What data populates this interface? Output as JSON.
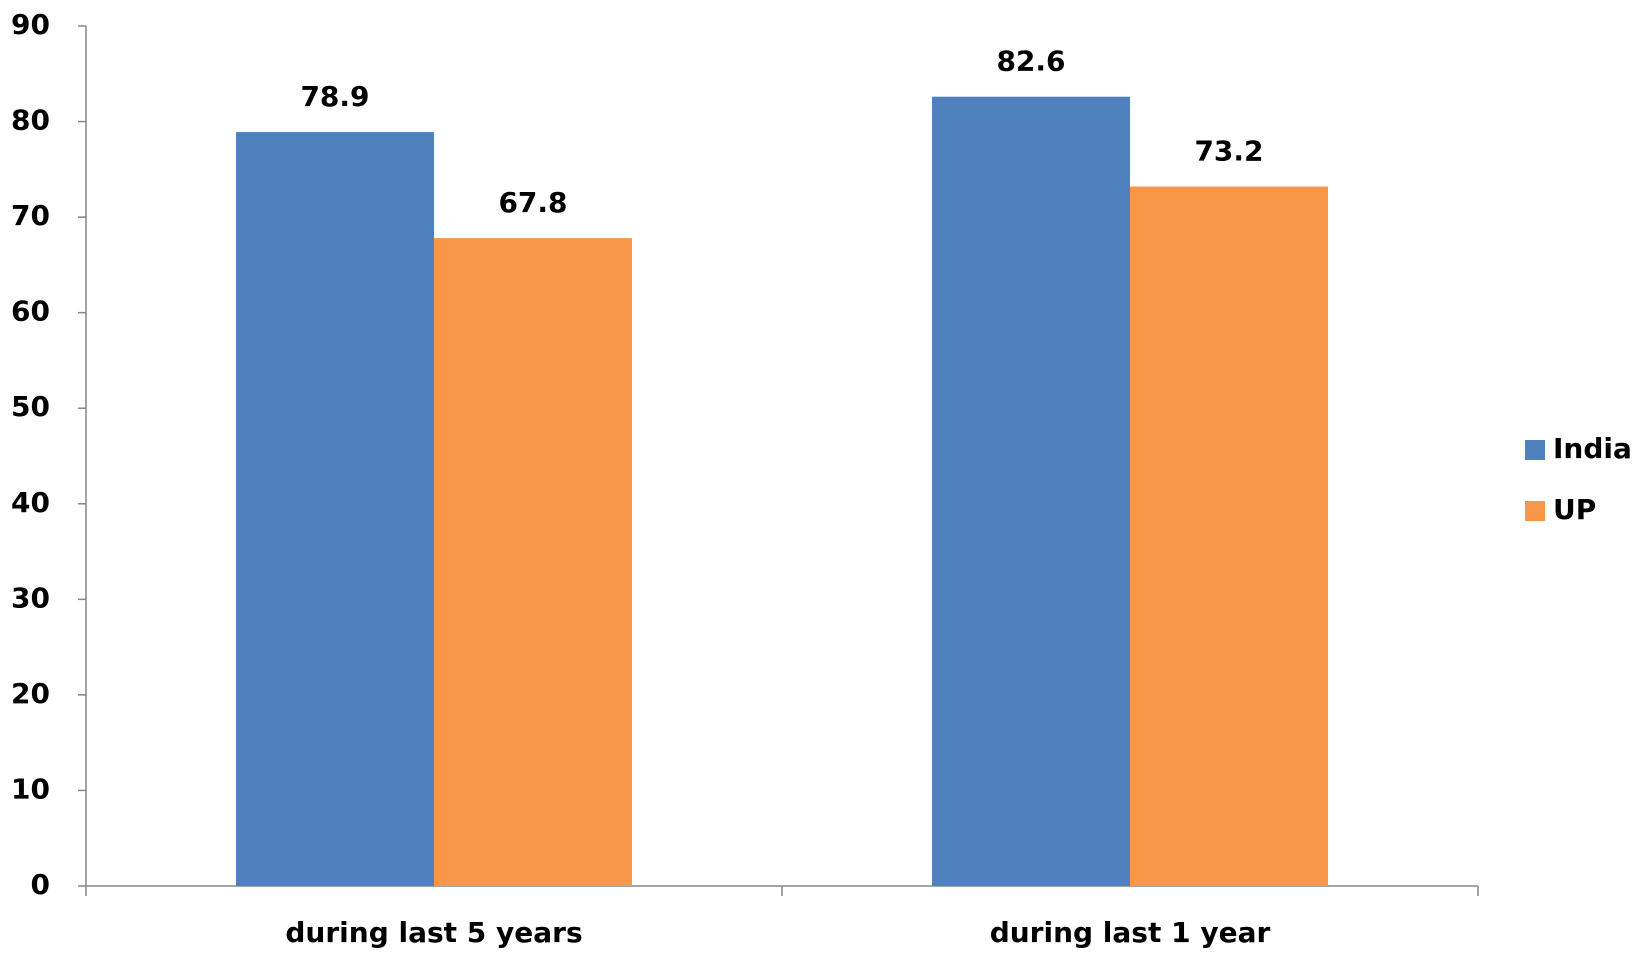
{
  "chart_data": {
    "type": "bar",
    "categories": [
      "during last 5 years",
      "during last 1 year"
    ],
    "series": [
      {
        "name": "India",
        "color": "#4f81bd",
        "values": [
          78.9,
          82.6
        ]
      },
      {
        "name": "UP",
        "color": "#f79646",
        "values": [
          67.8,
          73.2
        ]
      }
    ],
    "ylim": [
      0,
      90
    ],
    "yticks": [
      0,
      10,
      20,
      30,
      40,
      50,
      60,
      70,
      80,
      90
    ],
    "legend": "right"
  }
}
